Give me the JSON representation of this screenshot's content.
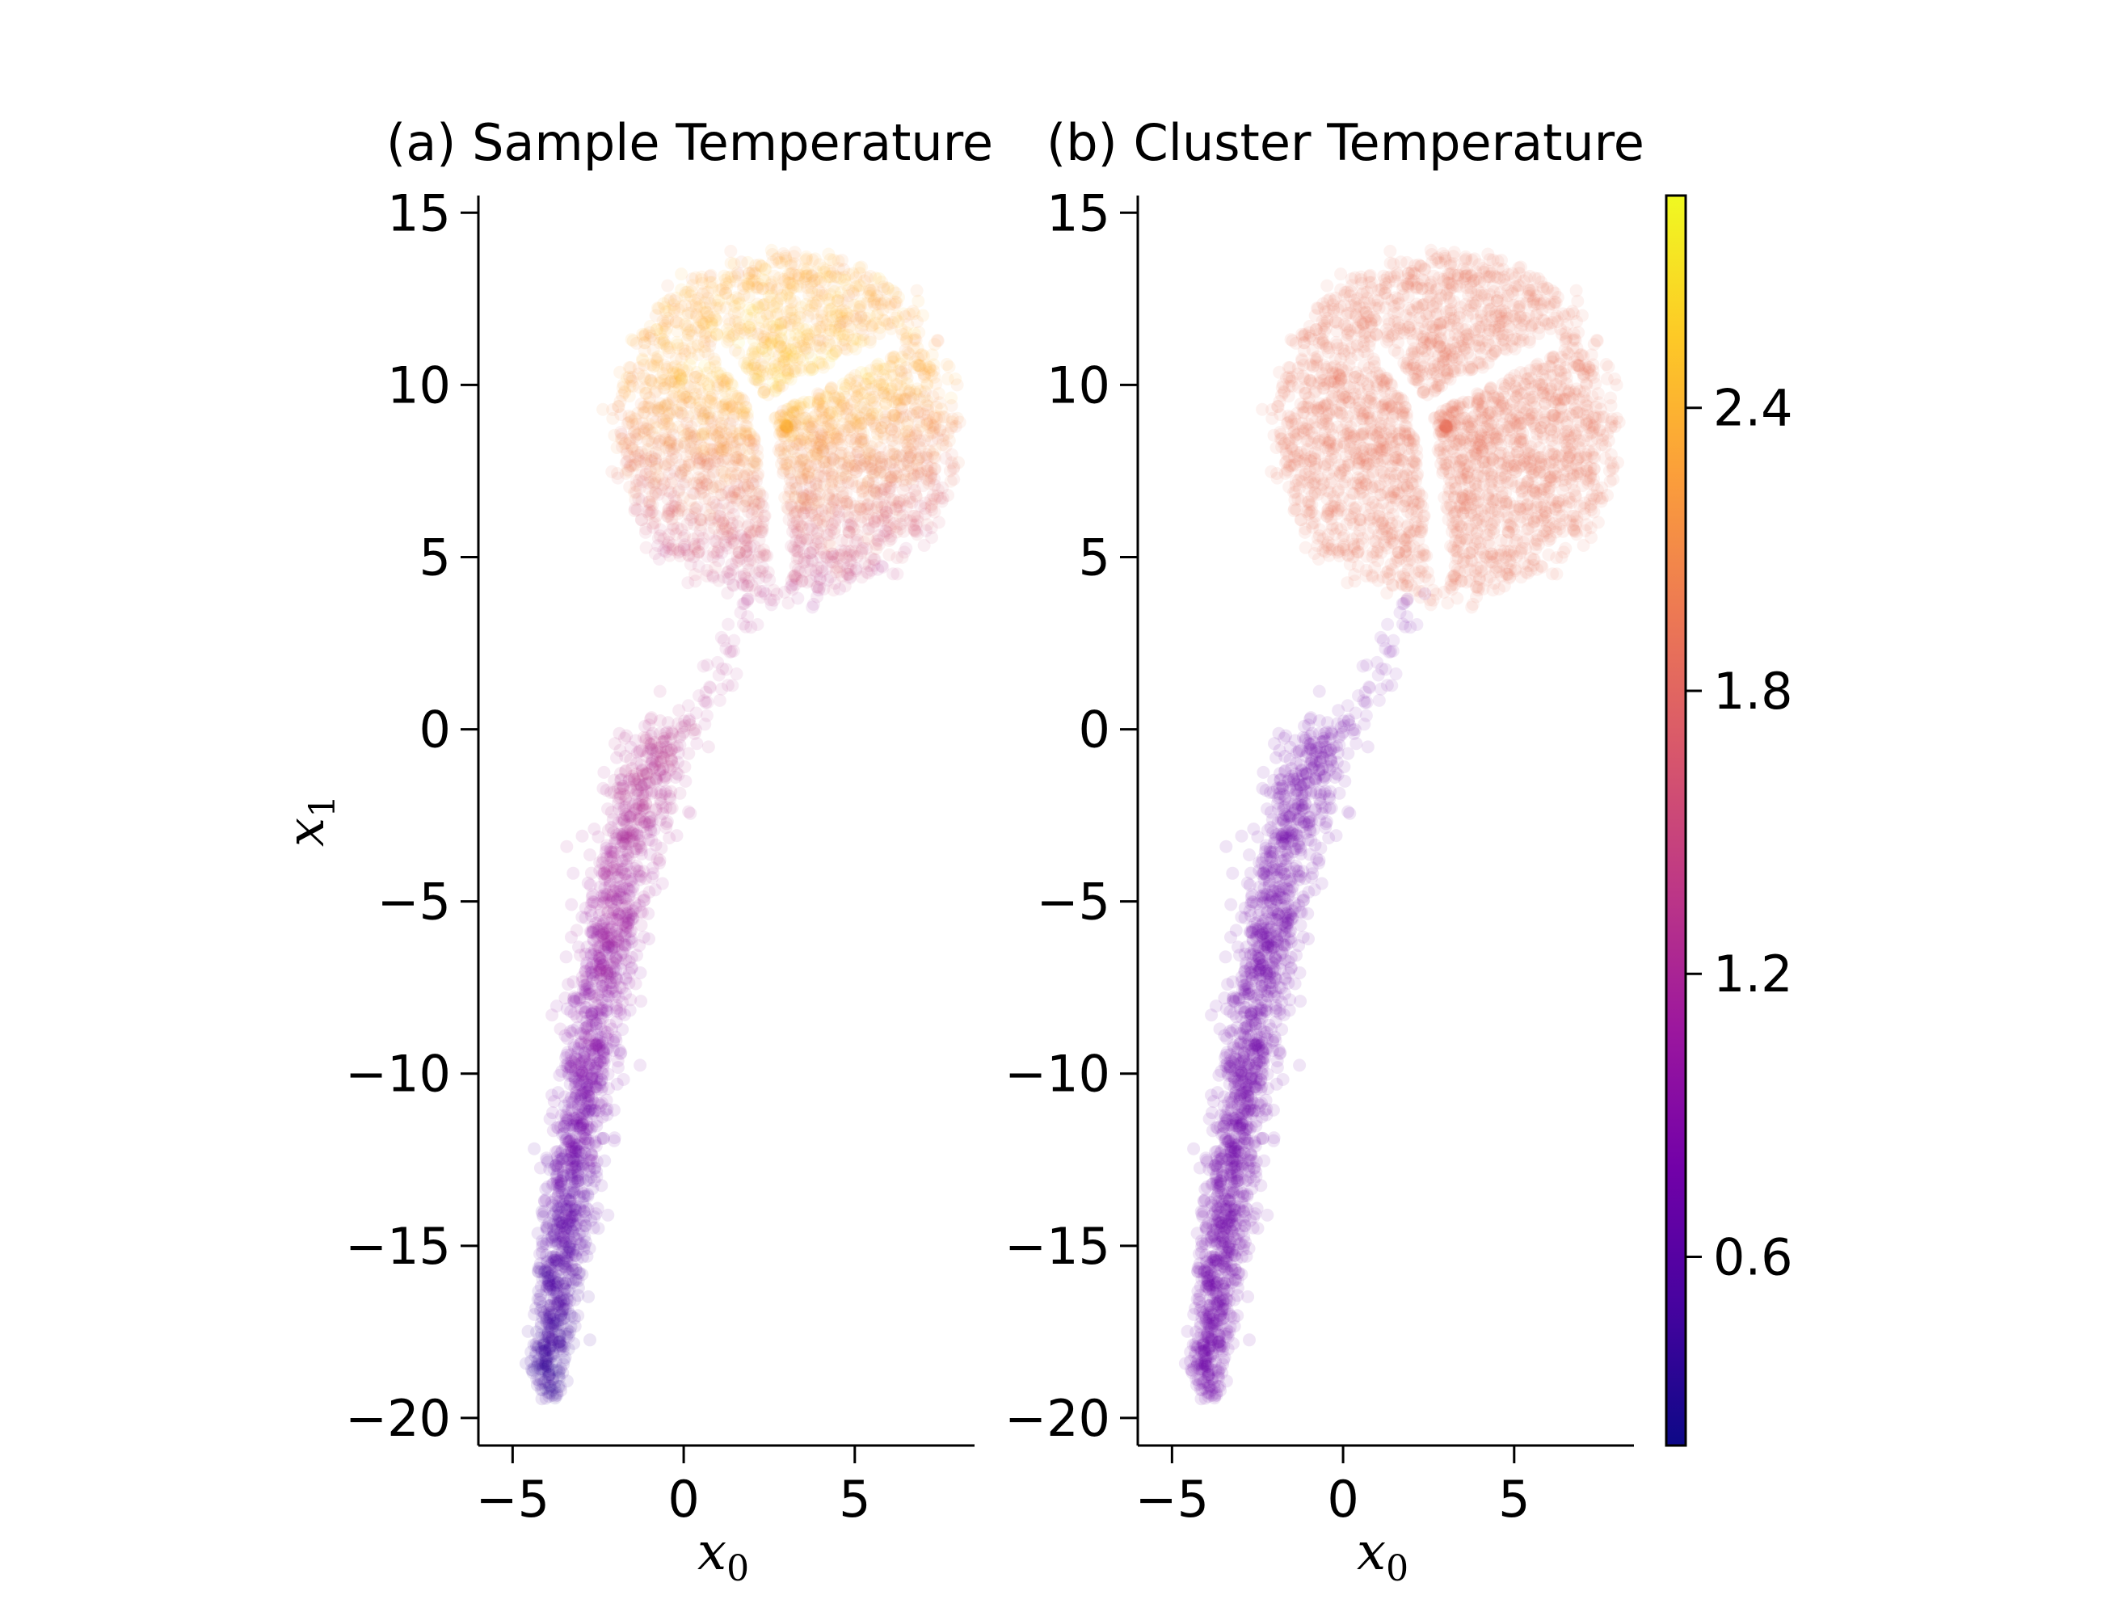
{
  "chart_data": [
    {
      "type": "scatter",
      "title": "(a)  Sample  Temperature",
      "xlabel": "x",
      "xlabel_sub": "0",
      "ylabel": "x",
      "ylabel_sub": "1",
      "xlim": [
        -6.0,
        8.5
      ],
      "ylim": [
        -20.8,
        15.5
      ],
      "xticks": [
        -5,
        0,
        5
      ],
      "xtick_labels": [
        "−5",
        "0",
        "5"
      ],
      "yticks": [
        15,
        10,
        5,
        0,
        -5,
        -10,
        -15,
        -20
      ],
      "ytick_labels": [
        "15",
        "10",
        "5",
        "0",
        "−5",
        "−10",
        "−15",
        "−20"
      ],
      "color_mode": "sample",
      "clusters": [
        {
          "region": "top disk",
          "center": [
            3.0,
            8.8
          ],
          "radius": 5.0,
          "temperature": 1.9,
          "sample_temperature_range": [
            1.2,
            2.6
          ]
        },
        {
          "region": "bottom arc",
          "from": [
            0.0,
            0.0
          ],
          "to": [
            -4.0,
            -19.0
          ],
          "temperature": 0.75,
          "sample_temperature_range": [
            0.4,
            1.4
          ]
        }
      ],
      "grid": false
    },
    {
      "type": "scatter",
      "title": "(b)  Cluster  Temperature",
      "xlabel": "x",
      "xlabel_sub": "0",
      "xlim": [
        -6.0,
        8.5
      ],
      "ylim": [
        -20.8,
        15.5
      ],
      "xticks": [
        -5,
        0,
        5
      ],
      "xtick_labels": [
        "−5",
        "0",
        "5"
      ],
      "yticks": [
        15,
        10,
        5,
        0,
        -5,
        -10,
        -15,
        -20
      ],
      "ytick_labels": [
        "15",
        "10",
        "5",
        "0",
        "−5",
        "−10",
        "−15",
        "−20"
      ],
      "color_mode": "cluster",
      "clusters": [
        {
          "region": "top disk",
          "center": [
            3.0,
            8.8
          ],
          "radius": 5.0,
          "temperature": 1.9
        },
        {
          "region": "bottom arc",
          "from": [
            0.0,
            0.0
          ],
          "to": [
            -4.0,
            -19.0
          ],
          "temperature": 0.75
        }
      ],
      "grid": false
    }
  ],
  "colorbar": {
    "colormap": "plasma",
    "range": [
      0.2,
      2.85
    ],
    "ticks": [
      2.4,
      1.8,
      1.2,
      0.6
    ],
    "tick_labels": [
      "2.4",
      "1.8",
      "1.2",
      "0.6"
    ],
    "stops": [
      "#0d0887",
      "#46039f",
      "#7201a8",
      "#9c179e",
      "#bd3786",
      "#d8576b",
      "#ed7953",
      "#fb9f3a",
      "#fdca26",
      "#f0f921"
    ]
  }
}
